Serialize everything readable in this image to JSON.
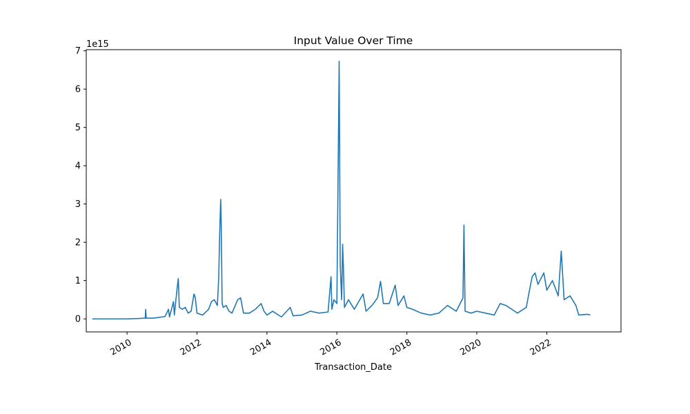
{
  "chart_data": {
    "type": "line",
    "title": "Input Value Over Time",
    "xlabel": "Transaction_Date",
    "ylabel": "",
    "y_offset_label": "1e15",
    "y_scale_exponent": 15,
    "xlim": [
      "2008-11-01",
      "2024-02-15"
    ],
    "ylim": [
      -0.34,
      7.03
    ],
    "x_ticks": [
      "2010",
      "2012",
      "2014",
      "2016",
      "2018",
      "2020",
      "2022"
    ],
    "y_ticks": [
      "0",
      "1",
      "2",
      "3",
      "4",
      "5",
      "6",
      "7"
    ],
    "grid": false,
    "series": [
      {
        "color": "#1f77b4",
        "points": [
          [
            "2009-01-03",
            0.0
          ],
          [
            "2009-07-01",
            0.0
          ],
          [
            "2010-01-01",
            0.0
          ],
          [
            "2010-05-01",
            0.01
          ],
          [
            "2010-07-10",
            0.02
          ],
          [
            "2010-07-15",
            0.25
          ],
          [
            "2010-07-20",
            0.02
          ],
          [
            "2010-10-01",
            0.02
          ],
          [
            "2011-01-01",
            0.05
          ],
          [
            "2011-02-01",
            0.06
          ],
          [
            "2011-03-10",
            0.25
          ],
          [
            "2011-03-20",
            0.05
          ],
          [
            "2011-05-01",
            0.45
          ],
          [
            "2011-05-10",
            0.1
          ],
          [
            "2011-06-10",
            0.85
          ],
          [
            "2011-06-20",
            1.05
          ],
          [
            "2011-07-01",
            0.3
          ],
          [
            "2011-08-01",
            0.25
          ],
          [
            "2011-09-01",
            0.3
          ],
          [
            "2011-10-01",
            0.15
          ],
          [
            "2011-11-01",
            0.2
          ],
          [
            "2011-12-01",
            0.65
          ],
          [
            "2011-12-15",
            0.55
          ],
          [
            "2012-01-01",
            0.15
          ],
          [
            "2012-03-01",
            0.1
          ],
          [
            "2012-05-01",
            0.25
          ],
          [
            "2012-06-01",
            0.45
          ],
          [
            "2012-07-01",
            0.5
          ],
          [
            "2012-08-01",
            0.35
          ],
          [
            "2012-08-15",
            1.05
          ],
          [
            "2012-08-25",
            2.2
          ],
          [
            "2012-09-05",
            3.12
          ],
          [
            "2012-09-10",
            2.55
          ],
          [
            "2012-09-20",
            0.4
          ],
          [
            "2012-10-01",
            0.3
          ],
          [
            "2012-11-01",
            0.35
          ],
          [
            "2012-12-01",
            0.2
          ],
          [
            "2013-01-01",
            0.15
          ],
          [
            "2013-03-01",
            0.5
          ],
          [
            "2013-04-01",
            0.55
          ],
          [
            "2013-05-01",
            0.15
          ],
          [
            "2013-07-01",
            0.15
          ],
          [
            "2013-09-01",
            0.25
          ],
          [
            "2013-11-01",
            0.4
          ],
          [
            "2013-12-01",
            0.2
          ],
          [
            "2014-01-01",
            0.1
          ],
          [
            "2014-03-01",
            0.2
          ],
          [
            "2014-06-01",
            0.05
          ],
          [
            "2014-09-01",
            0.3
          ],
          [
            "2014-10-01",
            0.08
          ],
          [
            "2015-01-01",
            0.1
          ],
          [
            "2015-04-01",
            0.2
          ],
          [
            "2015-07-01",
            0.15
          ],
          [
            "2015-10-01",
            0.18
          ],
          [
            "2015-11-01",
            1.1
          ],
          [
            "2015-11-10",
            0.25
          ],
          [
            "2015-12-01",
            0.5
          ],
          [
            "2016-01-01",
            0.4
          ],
          [
            "2016-01-25",
            6.73
          ],
          [
            "2016-02-05",
            1.4
          ],
          [
            "2016-02-20",
            0.5
          ],
          [
            "2016-03-01",
            1.95
          ],
          [
            "2016-03-10",
            1.3
          ],
          [
            "2016-03-20",
            0.3
          ],
          [
            "2016-05-01",
            0.5
          ],
          [
            "2016-07-01",
            0.25
          ],
          [
            "2016-10-01",
            0.65
          ],
          [
            "2016-11-01",
            0.2
          ],
          [
            "2017-01-01",
            0.35
          ],
          [
            "2017-03-01",
            0.55
          ],
          [
            "2017-04-01",
            0.98
          ],
          [
            "2017-05-01",
            0.4
          ],
          [
            "2017-07-01",
            0.4
          ],
          [
            "2017-09-01",
            0.88
          ],
          [
            "2017-10-01",
            0.35
          ],
          [
            "2017-12-01",
            0.6
          ],
          [
            "2018-01-01",
            0.3
          ],
          [
            "2018-03-01",
            0.25
          ],
          [
            "2018-06-01",
            0.15
          ],
          [
            "2018-09-01",
            0.1
          ],
          [
            "2018-12-01",
            0.15
          ],
          [
            "2019-03-01",
            0.35
          ],
          [
            "2019-06-01",
            0.2
          ],
          [
            "2019-08-10",
            0.55
          ],
          [
            "2019-08-20",
            2.45
          ],
          [
            "2019-09-01",
            0.2
          ],
          [
            "2019-11-01",
            0.15
          ],
          [
            "2020-01-01",
            0.2
          ],
          [
            "2020-04-01",
            0.15
          ],
          [
            "2020-07-01",
            0.1
          ],
          [
            "2020-09-01",
            0.4
          ],
          [
            "2020-11-01",
            0.35
          ],
          [
            "2021-01-01",
            0.25
          ],
          [
            "2021-03-01",
            0.15
          ],
          [
            "2021-06-01",
            0.3
          ],
          [
            "2021-07-01",
            0.7
          ],
          [
            "2021-08-01",
            1.1
          ],
          [
            "2021-09-01",
            1.2
          ],
          [
            "2021-10-01",
            0.9
          ],
          [
            "2021-12-01",
            1.2
          ],
          [
            "2022-01-01",
            0.75
          ],
          [
            "2022-03-01",
            1.0
          ],
          [
            "2022-05-01",
            0.6
          ],
          [
            "2022-06-01",
            1.77
          ],
          [
            "2022-07-01",
            0.5
          ],
          [
            "2022-09-01",
            0.6
          ],
          [
            "2022-11-01",
            0.35
          ],
          [
            "2022-12-01",
            0.1
          ],
          [
            "2023-03-01",
            0.12
          ],
          [
            "2023-04-01",
            0.1
          ]
        ]
      }
    ]
  }
}
